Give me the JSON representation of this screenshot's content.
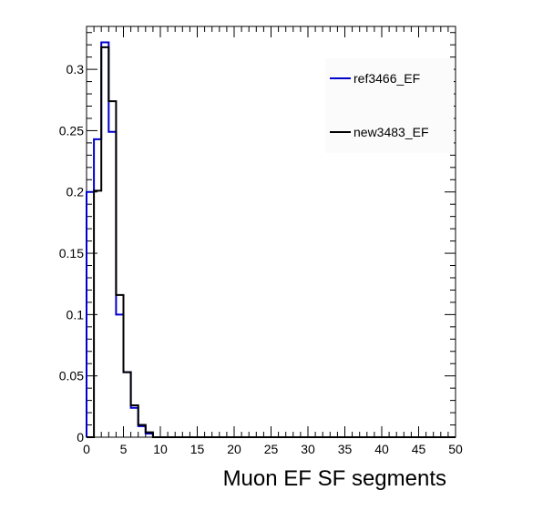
{
  "chart_data": {
    "type": "histogram",
    "title": "",
    "xlabel": "Muon EF SF segments",
    "ylabel": "",
    "xlim": [
      0,
      50
    ],
    "ylim": [
      0,
      0.335
    ],
    "x_ticks": [
      0,
      5,
      10,
      15,
      20,
      25,
      30,
      35,
      40,
      45,
      50
    ],
    "x_tick_labels": [
      "0",
      "5",
      "10",
      "15",
      "20",
      "25",
      "30",
      "35",
      "40",
      "45",
      "50"
    ],
    "y_ticks": [
      0,
      0.05,
      0.1,
      0.15,
      0.2,
      0.25,
      0.3
    ],
    "y_tick_labels": [
      "0",
      "0.05",
      "0.1",
      "0.15",
      "0.2",
      "0.25",
      "0.3"
    ],
    "bin_edges": [
      0,
      1,
      2,
      3,
      4,
      5,
      6,
      7,
      8,
      9,
      10,
      11,
      12,
      13,
      14,
      15,
      16,
      17,
      18,
      19,
      20,
      21,
      22,
      23,
      24,
      25,
      26,
      27,
      28,
      29,
      30,
      31,
      32,
      33,
      34,
      35,
      36,
      37,
      38,
      39,
      40,
      41,
      42,
      43,
      44,
      45,
      46,
      47,
      48,
      49,
      50
    ],
    "grid": false,
    "legend_position": "top-right",
    "series": [
      {
        "name": "ref3466_EF",
        "color": "#0000cc",
        "values": [
          0.2,
          0.243,
          0.322,
          0.249,
          0.1,
          0.053,
          0.024,
          0.009,
          0.003,
          0,
          0,
          0,
          0,
          0,
          0,
          0,
          0,
          0,
          0,
          0,
          0,
          0,
          0,
          0,
          0,
          0,
          0,
          0,
          0,
          0,
          0,
          0,
          0,
          0,
          0,
          0,
          0,
          0,
          0,
          0,
          0,
          0,
          0,
          0,
          0,
          0,
          0,
          0,
          0,
          0
        ]
      },
      {
        "name": "new3483_EF",
        "color": "#000000",
        "values": [
          0.0,
          0.201,
          0.318,
          0.274,
          0.116,
          0.053,
          0.026,
          0.01,
          0.004,
          0,
          0,
          0,
          0,
          0,
          0,
          0,
          0,
          0,
          0,
          0,
          0,
          0,
          0,
          0,
          0,
          0,
          0,
          0,
          0,
          0,
          0,
          0,
          0,
          0,
          0,
          0,
          0,
          0,
          0,
          0,
          0,
          0,
          0,
          0,
          0,
          0,
          0,
          0,
          0,
          0
        ]
      }
    ]
  }
}
